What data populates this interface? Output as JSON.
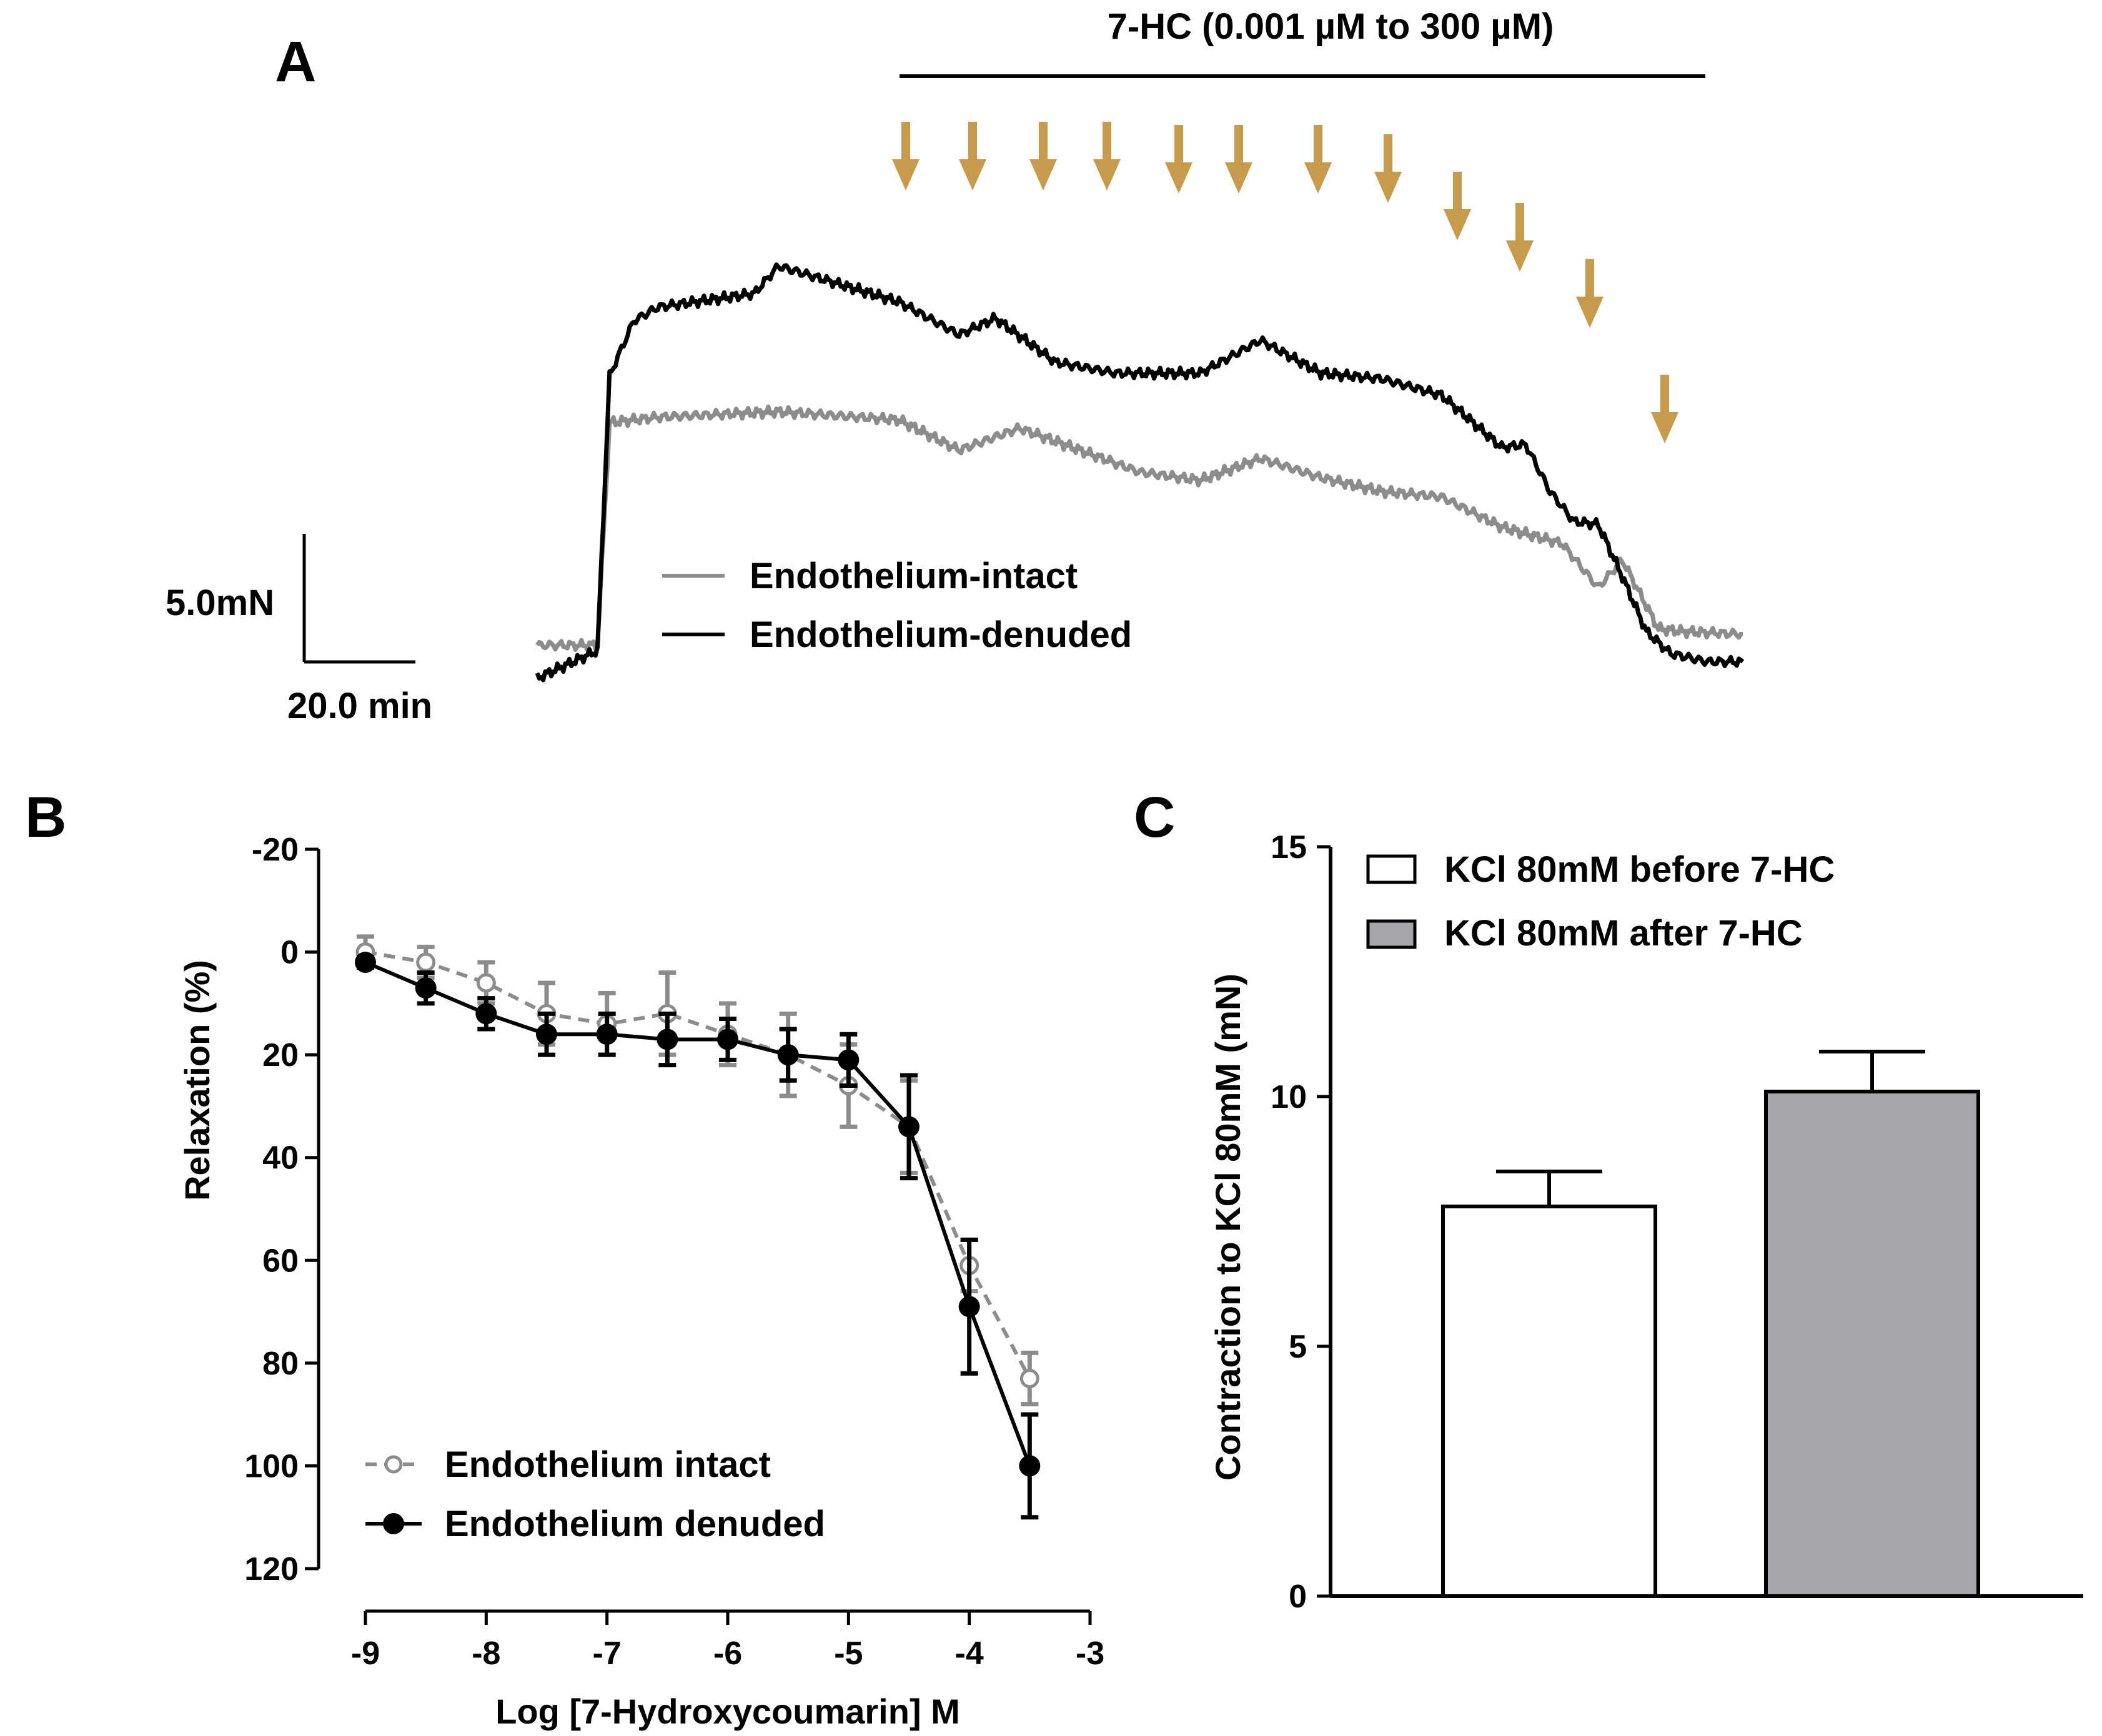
{
  "colors": {
    "arrow": "#C79A4C",
    "intact": "#8C8C8C",
    "denuded": "#000000",
    "bar_after": "#A6A6AA",
    "bar_before": "#FFFFFF"
  },
  "chart_data": [
    {
      "panel": "A",
      "type": "line",
      "title": "7-HC (0.001 µM to 300 µM)",
      "scale_bar": {
        "y_label": "5.0mN",
        "x_label": "20.0 min"
      },
      "arrow_count": 12,
      "legend": [
        "Endothelium-intact",
        "Endothelium-denuded"
      ],
      "series": [
        {
          "name": "Endothelium-intact",
          "x": [
            0,
            5,
            6,
            10,
            20,
            30,
            35,
            40,
            45,
            50,
            55,
            60,
            65,
            70,
            75,
            80,
            85,
            88,
            90,
            93,
            95,
            100
          ],
          "y": [
            -0.3,
            -0.3,
            7.8,
            8.0,
            8.2,
            7.9,
            6.8,
            7.6,
            6.8,
            6.0,
            5.7,
            6.5,
            5.8,
            5.3,
            5.1,
            4.0,
            3.4,
            1.8,
            2.8,
            0.3,
            0.2,
            0.1
          ]
        },
        {
          "name": "Endothelium-denuded",
          "x": [
            0,
            5,
            6,
            8,
            10,
            18,
            20,
            30,
            35,
            38,
            43,
            48,
            55,
            60,
            65,
            70,
            75,
            80,
            82,
            84,
            86,
            88,
            90,
            92,
            94,
            97,
            100
          ],
          "y": [
            -1.5,
            -0.5,
            9.5,
            11.5,
            12.0,
            12.5,
            13.5,
            12.2,
            11.0,
            11.6,
            10.0,
            9.6,
            9.6,
            10.8,
            9.6,
            9.4,
            8.8,
            6.9,
            7.0,
            5.3,
            4.2,
            4.1,
            2.2,
            0.2,
            -0.6,
            -0.9,
            -0.9
          ]
        }
      ]
    },
    {
      "panel": "B",
      "type": "line",
      "xlabel": "Log [7-Hydroxycoumarin] M",
      "ylabel": "Relaxation (%)",
      "xlim": [
        -9,
        -3
      ],
      "ylim": [
        -20,
        120
      ],
      "y_inverted": true,
      "x_ticks": [
        "-9",
        "-8",
        "-7",
        "-6",
        "-5",
        "-4",
        "-3"
      ],
      "y_ticks": [
        "-20",
        "0",
        "20",
        "40",
        "60",
        "80",
        "100",
        "120"
      ],
      "legend": [
        "Endothelium intact",
        "Endothelium denuded"
      ],
      "series": [
        {
          "name": "Endothelium intact",
          "style": "dashed-open-circle",
          "x": [
            -9,
            -8.5,
            -8,
            -7.5,
            -7,
            -6.5,
            -6,
            -5.5,
            -5,
            -4.5,
            -4,
            -3.5
          ],
          "y": [
            0,
            2,
            6,
            12,
            14,
            12,
            16,
            20,
            26,
            34,
            61,
            83
          ],
          "err": [
            3,
            3,
            4,
            6,
            6,
            8,
            6,
            8,
            8,
            9,
            5,
            5
          ]
        },
        {
          "name": "Endothelium denuded",
          "style": "solid-filled-circle",
          "x": [
            -9,
            -8.5,
            -8,
            -7.5,
            -7,
            -6.5,
            -6,
            -5.5,
            -5,
            -4.5,
            -4,
            -3.5
          ],
          "y": [
            2,
            7,
            12,
            16,
            16,
            17,
            17,
            20,
            21,
            34,
            69,
            100
          ],
          "err": [
            1,
            3,
            3,
            4,
            4,
            5,
            4,
            5,
            5,
            10,
            13,
            10
          ]
        }
      ]
    },
    {
      "panel": "C",
      "type": "bar",
      "ylabel": "Contraction to KCl 80mM (mN)",
      "ylim": [
        0,
        15
      ],
      "y_ticks": [
        "0",
        "5",
        "10",
        "15"
      ],
      "categories": [
        "KCl 80mM before 7-HC",
        "KCl 80mM after 7-HC"
      ],
      "values": [
        7.8,
        10.1
      ],
      "err": [
        0.7,
        0.8
      ]
    }
  ]
}
